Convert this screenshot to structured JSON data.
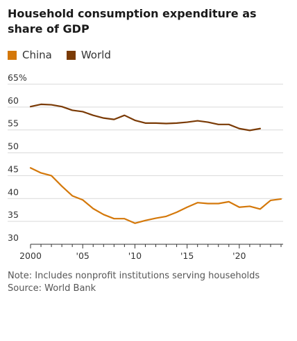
{
  "title": "Household consumption expenditure as share of GDP",
  "note": "Note: Includes nonprofit institutions serving households",
  "source": "Source: World Bank",
  "colors": {
    "china": "#d4780a",
    "world": "#7a3a05",
    "grid": "#d9d9d9",
    "axis": "#333333"
  },
  "chart_data": {
    "type": "line",
    "title": "Household consumption expenditure as share of GDP",
    "xlabel": "",
    "ylabel": "",
    "xlim": [
      2000,
      2024
    ],
    "ylim": [
      30,
      65
    ],
    "y_ticks": [
      30,
      35,
      40,
      45,
      50,
      55,
      60,
      65
    ],
    "y_tick_labels": [
      "30",
      "35",
      "40",
      "45",
      "50",
      "55",
      "60",
      "65%"
    ],
    "x_ticks": [
      2000,
      2005,
      2010,
      2015,
      2020
    ],
    "x_tick_labels": [
      "2000",
      "'05",
      "'10",
      "'15",
      "'20"
    ],
    "grid": true,
    "legend": "top-left",
    "series": [
      {
        "name": "China",
        "color": "#d4780a",
        "x": [
          2000,
          2001,
          2002,
          2003,
          2004,
          2005,
          2006,
          2007,
          2008,
          2009,
          2010,
          2011,
          2012,
          2013,
          2014,
          2015,
          2016,
          2017,
          2018,
          2019,
          2020,
          2021,
          2022,
          2023,
          2024
        ],
        "values": [
          46.7,
          45.6,
          45.0,
          42.7,
          40.6,
          39.7,
          37.8,
          36.5,
          35.6,
          35.6,
          34.6,
          35.2,
          35.7,
          36.1,
          37.0,
          38.1,
          39.1,
          38.9,
          38.9,
          39.3,
          38.1,
          38.3,
          37.7,
          39.6,
          39.9
        ]
      },
      {
        "name": "World",
        "color": "#7a3a05",
        "x": [
          2000,
          2001,
          2002,
          2003,
          2004,
          2005,
          2006,
          2007,
          2008,
          2009,
          2010,
          2011,
          2012,
          2013,
          2014,
          2015,
          2016,
          2017,
          2018,
          2019,
          2020,
          2021,
          2022
        ],
        "values": [
          60.1,
          60.6,
          60.5,
          60.1,
          59.3,
          59.0,
          58.2,
          57.6,
          57.3,
          58.2,
          57.1,
          56.5,
          56.5,
          56.4,
          56.5,
          56.7,
          57.0,
          56.7,
          56.2,
          56.2,
          55.3,
          54.9,
          55.3
        ]
      }
    ]
  }
}
